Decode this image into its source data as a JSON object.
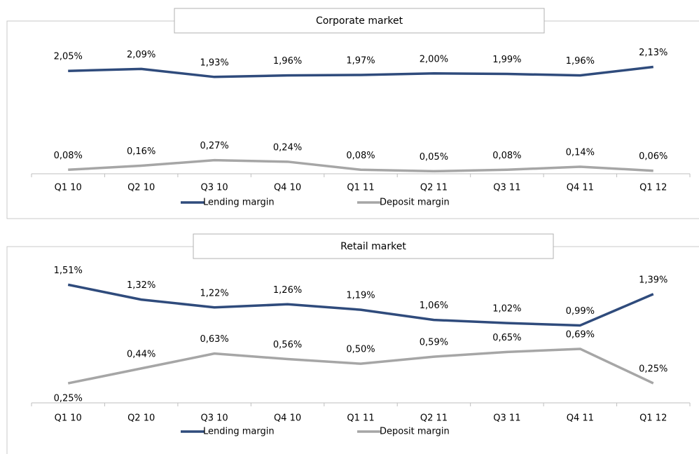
{
  "chart_data": [
    {
      "type": "line",
      "title": "Corporate market",
      "categories": [
        "Q1 10",
        "Q2 10",
        "Q3 10",
        "Q4 10",
        "Q1 11",
        "Q2 11",
        "Q3 11",
        "Q4 11",
        "Q1 12"
      ],
      "series": [
        {
          "name": "Lending margin",
          "color": "#2f4b7c",
          "values": [
            2.05,
            2.09,
            1.93,
            1.96,
            1.97,
            2.0,
            1.99,
            1.96,
            2.13
          ],
          "value_labels": [
            "2,05%",
            "2,09%",
            "1,93%",
            "1,96%",
            "1,97%",
            "2,00%",
            "1,99%",
            "1,96%",
            "2,13%"
          ]
        },
        {
          "name": "Deposit margin",
          "color": "#a6a6a6",
          "values": [
            0.08,
            0.16,
            0.27,
            0.24,
            0.08,
            0.05,
            0.08,
            0.14,
            0.06
          ],
          "value_labels": [
            "0,08%",
            "0,16%",
            "0,27%",
            "0,24%",
            "0,08%",
            "0,05%",
            "0,08%",
            "0,14%",
            "0,06%"
          ]
        }
      ],
      "ylim": [
        0,
        2.5
      ],
      "legend": "bottom"
    },
    {
      "type": "line",
      "title": "Retail market",
      "categories": [
        "Q1 10",
        "Q2 10",
        "Q3 10",
        "Q4 10",
        "Q1 11",
        "Q2 11",
        "Q3 11",
        "Q4 11",
        "Q1 12"
      ],
      "series": [
        {
          "name": "Lending margin",
          "color": "#2f4b7c",
          "values": [
            1.51,
            1.32,
            1.22,
            1.26,
            1.19,
            1.06,
            1.02,
            0.99,
            1.39
          ],
          "value_labels": [
            "1,51%",
            "1,32%",
            "1,22%",
            "1,26%",
            "1,19%",
            "1,06%",
            "1,02%",
            "0,99%",
            "1,39%"
          ]
        },
        {
          "name": "Deposit margin",
          "color": "#a6a6a6",
          "values": [
            0.25,
            0.44,
            0.63,
            0.56,
            0.5,
            0.59,
            0.65,
            0.69,
            0.25
          ],
          "value_labels": [
            "0,25%",
            "0,44%",
            "0,63%",
            "0,56%",
            "0,50%",
            "0,59%",
            "0,65%",
            "0,69%",
            "0,25%"
          ]
        }
      ],
      "ylim": [
        0,
        1.8
      ],
      "legend": "bottom"
    }
  ]
}
